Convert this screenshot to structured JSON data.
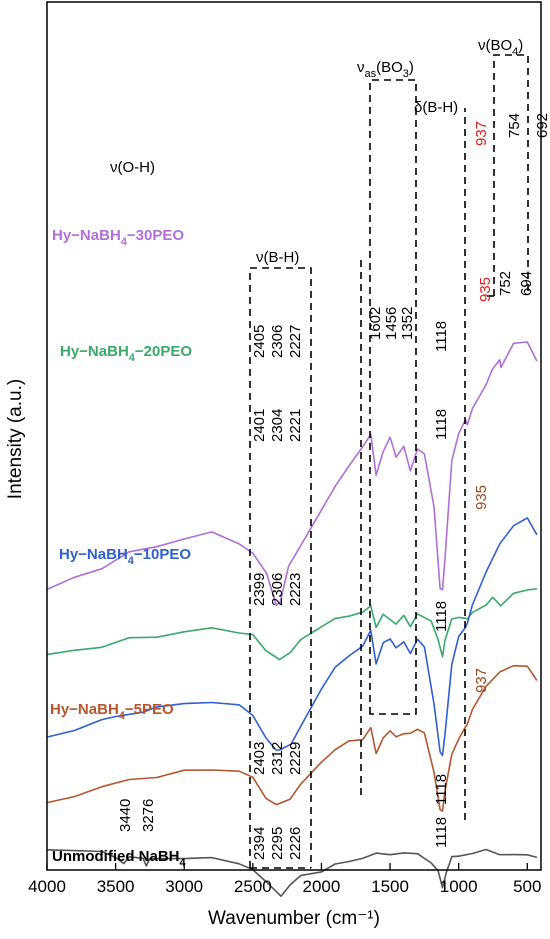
{
  "chart_data": {
    "type": "line",
    "xlabel": "Wavenumber (cm⁻¹)",
    "ylabel": "Intensity (a.u.)",
    "xlim": [
      4000,
      400
    ],
    "x_ticks": [
      "4000",
      "3500",
      "3000",
      "2500",
      "2000",
      "1500",
      "1000",
      "500"
    ],
    "x_tick_values": [
      4000,
      3500,
      3000,
      2500,
      2000,
      1500,
      1000,
      500
    ],
    "ylim": [
      0,
      100
    ],
    "grid": false,
    "series": [
      {
        "name": "Hy−NaBH₄−30PEO",
        "color": "#b06fd6",
        "points": [
          [
            4000,
            19.2
          ],
          [
            3800,
            20.4
          ],
          [
            3600,
            21.6
          ],
          [
            3400,
            23.2
          ],
          [
            3200,
            23.8
          ],
          [
            3000,
            24.8
          ],
          [
            2800,
            25.3
          ],
          [
            2600,
            24.2
          ],
          [
            2500,
            23.2
          ],
          [
            2400,
            20.8
          ],
          [
            2330,
            17.6
          ],
          [
            2300,
            17.8
          ],
          [
            2240,
            21.6
          ],
          [
            2100,
            25.4
          ],
          [
            1900,
            30.3
          ],
          [
            1800,
            32.6
          ],
          [
            1700,
            34.8
          ],
          [
            1640,
            35.9
          ],
          [
            1602,
            31.7
          ],
          [
            1550,
            34.2
          ],
          [
            1500,
            35.6
          ],
          [
            1456,
            33.7
          ],
          [
            1400,
            34.7
          ],
          [
            1352,
            32.0
          ],
          [
            1300,
            34.6
          ],
          [
            1250,
            33.8
          ],
          [
            1180,
            28.2
          ],
          [
            1135,
            19.4
          ],
          [
            1118,
            19.0
          ],
          [
            1100,
            22.5
          ],
          [
            1050,
            33.2
          ],
          [
            1000,
            36.0
          ],
          [
            950,
            37.8
          ],
          [
            937,
            37.0
          ],
          [
            900,
            38.8
          ],
          [
            800,
            41.6
          ],
          [
            754,
            43.0
          ],
          [
            700,
            44.2
          ],
          [
            692,
            43.4
          ],
          [
            600,
            45.8
          ],
          [
            500,
            46.2
          ],
          [
            430,
            44.0
          ]
        ]
      },
      {
        "name": "Hy−NaBH₄−20PEO",
        "color": "#3aa96a",
        "points": [
          [
            4000,
            12.0
          ],
          [
            3800,
            12.6
          ],
          [
            3600,
            13.0
          ],
          [
            3400,
            13.8
          ],
          [
            3200,
            14.1
          ],
          [
            3000,
            14.6
          ],
          [
            2800,
            14.9
          ],
          [
            2600,
            14.6
          ],
          [
            2500,
            14.2
          ],
          [
            2405,
            12.5
          ],
          [
            2306,
            11.7
          ],
          [
            2227,
            12.2
          ],
          [
            2150,
            13.8
          ],
          [
            2000,
            15.2
          ],
          [
            1900,
            15.9
          ],
          [
            1800,
            16.4
          ],
          [
            1700,
            16.7
          ],
          [
            1640,
            17.3
          ],
          [
            1602,
            15.2
          ],
          [
            1550,
            16.4
          ],
          [
            1456,
            15.4
          ],
          [
            1400,
            16.5
          ],
          [
            1352,
            15.0
          ],
          [
            1300,
            16.6
          ],
          [
            1200,
            15.8
          ],
          [
            1150,
            13.6
          ],
          [
            1118,
            12.0
          ],
          [
            1100,
            13.6
          ],
          [
            1050,
            15.9
          ],
          [
            1000,
            16.3
          ],
          [
            935,
            15.9
          ],
          [
            900,
            16.7
          ],
          [
            800,
            17.6
          ],
          [
            752,
            18.2
          ],
          [
            694,
            17.5
          ],
          [
            600,
            18.8
          ],
          [
            500,
            19.0
          ],
          [
            430,
            19.4
          ]
        ]
      },
      {
        "name": "Hy−NaBH₄−10PEO",
        "color": "#2f5fd0",
        "points": [
          [
            4000,
            3.0
          ],
          [
            3800,
            4.0
          ],
          [
            3600,
            5.0
          ],
          [
            3500,
            5.3
          ],
          [
            3300,
            6.0
          ],
          [
            3200,
            6.3
          ],
          [
            3000,
            6.8
          ],
          [
            2800,
            7.0
          ],
          [
            2600,
            6.5
          ],
          [
            2500,
            5.6
          ],
          [
            2401,
            3.0
          ],
          [
            2330,
            1.6
          ],
          [
            2304,
            1.9
          ],
          [
            2221,
            2.3
          ],
          [
            2150,
            4.3
          ],
          [
            2000,
            8.5
          ],
          [
            1900,
            10.6
          ],
          [
            1800,
            12.0
          ],
          [
            1700,
            13.1
          ],
          [
            1640,
            14.6
          ],
          [
            1602,
            11.2
          ],
          [
            1550,
            13.4
          ],
          [
            1500,
            13.7
          ],
          [
            1456,
            13.0
          ],
          [
            1400,
            13.4
          ],
          [
            1352,
            12.2
          ],
          [
            1300,
            13.9
          ],
          [
            1250,
            12.8
          ],
          [
            1180,
            6.8
          ],
          [
            1135,
            1.6
          ],
          [
            1118,
            1.0
          ],
          [
            1100,
            3.5
          ],
          [
            1050,
            11.0
          ],
          [
            1000,
            14.0
          ],
          [
            950,
            15.2
          ],
          [
            935,
            15.5
          ],
          [
            900,
            17.5
          ],
          [
            800,
            21.2
          ],
          [
            700,
            24.0
          ],
          [
            600,
            26.2
          ],
          [
            500,
            27.0
          ],
          [
            430,
            25.0
          ]
        ]
      },
      {
        "name": "Hy−NaBH₄−5PEO",
        "color": "#b5562f",
        "points": [
          [
            4000,
            -4.0
          ],
          [
            3800,
            -3.2
          ],
          [
            3600,
            -2.4
          ],
          [
            3400,
            -1.4
          ],
          [
            3200,
            -1.2
          ],
          [
            3000,
            -0.6
          ],
          [
            2800,
            -0.3
          ],
          [
            2600,
            -0.6
          ],
          [
            2500,
            -1.3
          ],
          [
            2403,
            -3.4
          ],
          [
            2330,
            -4.3
          ],
          [
            2312,
            -4.1
          ],
          [
            2229,
            -3.5
          ],
          [
            2150,
            -2.1
          ],
          [
            2000,
            0.5
          ],
          [
            1900,
            1.8
          ],
          [
            1800,
            2.6
          ],
          [
            1700,
            3.0
          ],
          [
            1640,
            4.1
          ],
          [
            1602,
            1.3
          ],
          [
            1550,
            3.2
          ],
          [
            1500,
            3.7
          ],
          [
            1456,
            3.2
          ],
          [
            1400,
            3.6
          ],
          [
            1352,
            3.4
          ],
          [
            1300,
            4.1
          ],
          [
            1250,
            3.6
          ],
          [
            1180,
            -0.8
          ],
          [
            1135,
            -4.6
          ],
          [
            1118,
            -5.0
          ],
          [
            1100,
            -2.8
          ],
          [
            1050,
            1.4
          ],
          [
            1000,
            2.8
          ],
          [
            950,
            4.3
          ],
          [
            937,
            4.6
          ],
          [
            900,
            6.0
          ],
          [
            800,
            8.8
          ],
          [
            700,
            10.2
          ],
          [
            600,
            10.8
          ],
          [
            500,
            11.0
          ],
          [
            430,
            9.2
          ]
        ]
      },
      {
        "name": "Unmodified NaBH₄",
        "color": "#555555",
        "points": [
          [
            4000,
            -9.0
          ],
          [
            3800,
            -9.2
          ],
          [
            3600,
            -9.4
          ],
          [
            3500,
            -9.8
          ],
          [
            3440,
            -10.7
          ],
          [
            3400,
            -9.9
          ],
          [
            3300,
            -9.9
          ],
          [
            3276,
            -11.0
          ],
          [
            3250,
            -10.0
          ],
          [
            3000,
            -10.0
          ],
          [
            2800,
            -10.1
          ],
          [
            2600,
            -10.5
          ],
          [
            2500,
            -11.3
          ],
          [
            2394,
            -12.8
          ],
          [
            2295,
            -14.0
          ],
          [
            2226,
            -13.0
          ],
          [
            2150,
            -11.9
          ],
          [
            2000,
            -11.4
          ],
          [
            1900,
            -10.8
          ],
          [
            1800,
            -10.3
          ],
          [
            1700,
            -10.0
          ],
          [
            1600,
            -9.6
          ],
          [
            1500,
            -9.5
          ],
          [
            1400,
            -9.5
          ],
          [
            1300,
            -9.6
          ],
          [
            1200,
            -10.4
          ],
          [
            1150,
            -11.5
          ],
          [
            1118,
            -13.2
          ],
          [
            1090,
            -11.5
          ],
          [
            1050,
            -10.0
          ],
          [
            1000,
            -9.7
          ],
          [
            900,
            -9.5
          ],
          [
            800,
            -9.2
          ],
          [
            700,
            -9.5
          ],
          [
            600,
            -9.7
          ],
          [
            500,
            -9.7
          ],
          [
            430,
            -9.8
          ]
        ]
      }
    ],
    "series_labels": [
      {
        "text": "Hy−NaBH",
        "sub": "4",
        "tail": "−30PEO",
        "color": "#b06fd6"
      },
      {
        "text": "Hy−NaBH",
        "sub": "4",
        "tail": "−20PEO",
        "color": "#3aa96a"
      },
      {
        "text": "Hy−NaBH",
        "sub": "4",
        "tail": "−10PEO",
        "color": "#2f5fd0"
      },
      {
        "text": "Hy−NaBH",
        "sub": "4",
        "tail": "−5PEO",
        "color": "#b5562f"
      },
      {
        "text": "Unmodified NaBH",
        "sub": "4",
        "tail": "",
        "color": "#000000"
      }
    ],
    "mode_labels": {
      "oh": "ν(O-H)",
      "bh": "ν(B-H)",
      "bo3_pre": "ν",
      "bo3_sub": "as",
      "bo3_post": "(BO",
      "bo3_sub2": "3",
      "bo3_end": ")",
      "bh_def": "δ(B-H)",
      "bo4_pre": "ν(BO",
      "bo4_sub": "4",
      "bo4_end": ")"
    },
    "peak_labels": {
      "s30": [
        "937",
        "754",
        "692"
      ],
      "s20": [
        "2405",
        "2306",
        "2227",
        "1602",
        "1456",
        "1352",
        "1118",
        "935",
        "752",
        "694"
      ],
      "s10": [
        "2401",
        "2304",
        "2221",
        "1118",
        "935"
      ],
      "s10b": [
        "2399",
        "2306",
        "2223",
        "1118"
      ],
      "s5": [
        "937",
        "2403",
        "2312",
        "2229",
        "1118"
      ],
      "s0": [
        "3440",
        "3276",
        "2394",
        "2295",
        "2226",
        "1118"
      ]
    }
  }
}
